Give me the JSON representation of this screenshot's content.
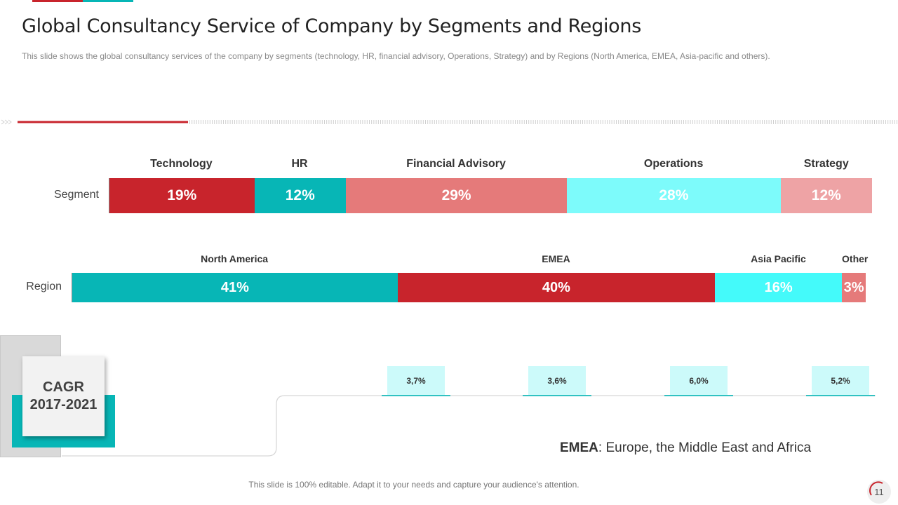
{
  "title": "Global Consultancy Service of Company by Segments and Regions",
  "subtitle": "This slide shows the global consultancy services of the company by segments (technology, HR, financial advisory, Operations, Strategy) and by Regions (North America, EMEA, Asia-pacific and others).",
  "chart_data": [
    {
      "type": "bar",
      "orientation": "horizontal-stacked",
      "row_label": "Segment",
      "categories": [
        "Technology",
        "HR",
        "Financial Advisory",
        "Operations",
        "Strategy"
      ],
      "values": [
        19,
        12,
        29,
        28,
        12
      ],
      "value_labels": [
        "19%",
        "12%",
        "29%",
        "28%",
        "12%"
      ],
      "colors": [
        "#c8242c",
        "#07b6b6",
        "#e57a7a",
        "#7dfbfb",
        "#eea3a5"
      ]
    },
    {
      "type": "bar",
      "orientation": "horizontal-stacked",
      "row_label": "Region",
      "categories": [
        "North America",
        "EMEA",
        "Asia Pacific",
        "Other"
      ],
      "values": [
        41,
        40,
        16,
        3
      ],
      "value_labels": [
        "41%",
        "40%",
        "16%",
        "3%"
      ],
      "colors": [
        "#07b6b6",
        "#c8242c",
        "#44fafa",
        "#e57a7a"
      ]
    }
  ],
  "cagr": {
    "title_line1": "CAGR",
    "title_line2": "2017-2021",
    "values": [
      "3,7%",
      "3,6%",
      "6,0%",
      "5,2%"
    ]
  },
  "note": {
    "term": "EMEA",
    "definition": ": Europe, the Middle East and Africa"
  },
  "footer": "This slide is 100% editable. Adapt it to your needs and capture your audience's attention.",
  "page_number": "11",
  "colors": {
    "accent_red": "#c8242c",
    "accent_teal": "#07b6b6"
  }
}
